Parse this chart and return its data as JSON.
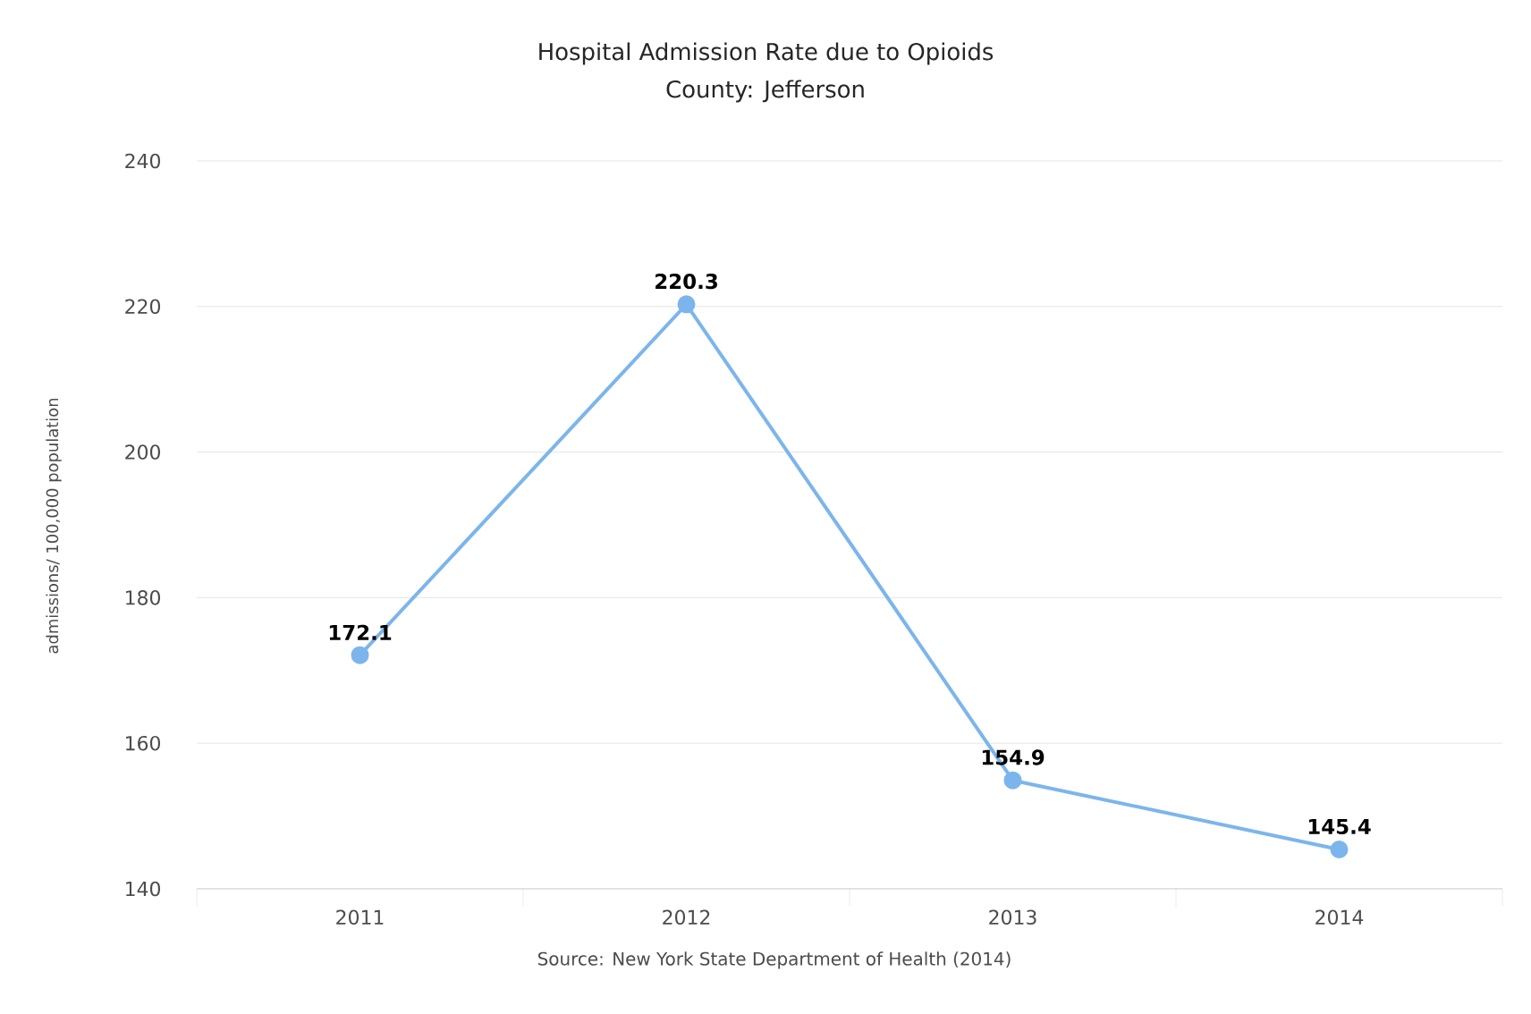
{
  "chart_data": {
    "type": "line",
    "title": "Hospital Admission Rate due to Opioids",
    "subtitle": "County: Jefferson",
    "ylabel": "admissions/ 100,000 population",
    "categories": [
      "2011",
      "2012",
      "2013",
      "2014"
    ],
    "values": [
      172.1,
      220.3,
      154.9,
      145.4
    ],
    "color": "#7cb5ec",
    "marker": "circle",
    "data_labels": true,
    "grid": "y",
    "ylim": [
      140,
      240
    ],
    "yticks": [
      140,
      160,
      180,
      200,
      220,
      240
    ],
    "annotations": [
      "Source: New York State Department of Health (2014)"
    ]
  }
}
